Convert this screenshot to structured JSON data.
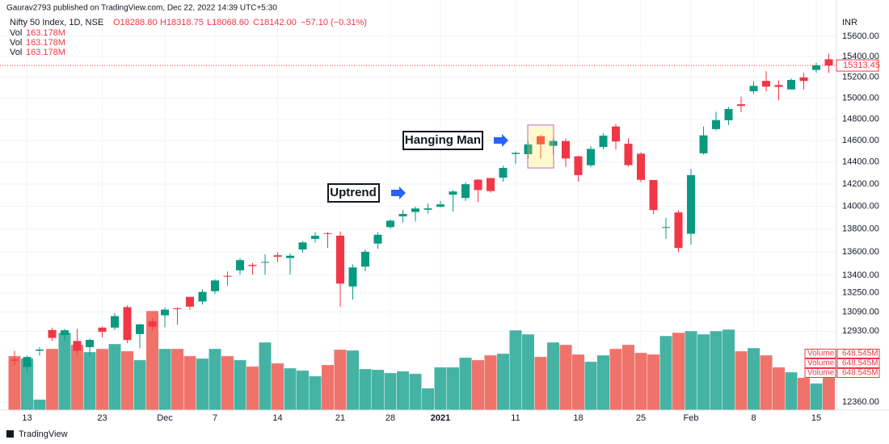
{
  "header": {
    "publisher": "Gaurav2793 published on TradingView.com, Dec 22, 2022 14:39 UTC+5:30",
    "symbol": "Nifty 50 Index, 1D, NSE",
    "open": "O18288.80",
    "high": "H18318.75",
    "low": "L18068.60",
    "close": "C18142.00",
    "change": "−57.10 (−0.31%)",
    "vol_name": "Vol",
    "vol_value": "163.178M"
  },
  "footer": {
    "brand": "TradingView"
  },
  "chart_data": {
    "type": "candlestick",
    "currency": "INR",
    "log_scale": true,
    "grid": true,
    "up_color": "#089981",
    "down_color": "#f23645",
    "volume_up_color": "#45b3a4",
    "volume_down_color": "#f0736b",
    "categories": [
      null,
      "13",
      null,
      null,
      null,
      null,
      null,
      "23",
      null,
      null,
      null,
      null,
      "Dec",
      null,
      null,
      null,
      "7",
      null,
      null,
      null,
      null,
      "14",
      null,
      null,
      null,
      null,
      "21",
      null,
      null,
      null,
      "28",
      null,
      null,
      null,
      "2021",
      null,
      null,
      null,
      null,
      null,
      "11",
      null,
      null,
      null,
      null,
      "18",
      null,
      null,
      null,
      null,
      "25",
      null,
      null,
      null,
      "Feb",
      null,
      null,
      null,
      null,
      "8",
      null,
      null,
      null,
      null,
      "15",
      null
    ],
    "open": [
      12700,
      12640,
      12770,
      12940,
      12900,
      12850,
      12800,
      12960,
      12960,
      13130,
      12907,
      13012,
      13062,
      13121,
      13216,
      13177,
      13264,
      13394,
      13441,
      13488,
      13512,
      13571,
      13547,
      13621,
      13713,
      13763,
      13741,
      13304,
      13473,
      13672,
      13816,
      13911,
      13950,
      13970,
      13996,
      14104,
      14075,
      14240,
      14254,
      14258,
      14474,
      14473,
      14639,
      14550,
      14594,
      14453,
      14371,
      14539,
      14730,
      14569,
      14477,
      14237,
      13810,
      13946,
      13758,
      14481,
      14706,
      14789,
      14940,
      15064,
      15164,
      15124,
      15082,
      15198,
      15270,
      15374
    ],
    "high": [
      12770,
      12730,
      12800,
      12960,
      12950,
      12950,
      12870,
      12970,
      13080,
      13146,
      12991,
      13036,
      13128,
      13128,
      13216,
      13280,
      13366,
      13432,
      13548,
      13504,
      13580,
      13597,
      13587,
      13692,
      13773,
      13772,
      13778,
      13492,
      13619,
      13771,
      13885,
      13968,
      13997,
      14025,
      14049,
      14147,
      14215,
      14244,
      14256,
      14367,
      14498,
      14590,
      14653,
      14617,
      14617,
      14459,
      14546,
      14667,
      14753,
      14619,
      14491,
      14237,
      13898,
      13966,
      14337,
      14731,
      14868,
      14914,
      15014,
      15159,
      15257,
      15169,
      15188,
      15243,
      15340,
      15431
    ],
    "low": [
      12650,
      12600,
      12730,
      12850,
      12850,
      12730,
      12730,
      12880,
      12940,
      12833,
      12790,
      12935,
      12962,
      12983,
      13107,
      13152,
      13241,
      13311,
      13401,
      13403,
      13402,
      13512,
      13403,
      13593,
      13682,
      13634,
      13131,
      13193,
      13433,
      13626,
      13802,
      13858,
      13865,
      13937,
      13991,
      13953,
      14048,
      14039,
      14123,
      14222,
      14383,
      14432,
      14435,
      14471,
      14357,
      14222,
      14351,
      14517,
      14517,
      14358,
      14218,
      13929,
      13713,
      13597,
      13662,
      14469,
      14692,
      14745,
      14864,
      15041,
      15064,
      14978,
      15081,
      15081,
      15243,
      15242
    ],
    "close": [
      12690,
      12720,
      12780,
      12875,
      12938,
      12771,
      12859,
      12926,
      13055,
      12858,
      12987,
      12968,
      13109,
      13113,
      13134,
      13258,
      13355,
      13392,
      13529,
      13478,
      13513,
      13558,
      13567,
      13682,
      13740,
      13760,
      13328,
      13466,
      13601,
      13749,
      13873,
      13932,
      13981,
      13982,
      14018,
      14133,
      14199,
      14146,
      14137,
      14347,
      14485,
      14563,
      14564,
      14595,
      14433,
      14281,
      14521,
      14644,
      14590,
      14372,
      14238,
      13967,
      13817,
      13634,
      14281,
      14647,
      14790,
      14895,
      14924,
      15116,
      15109,
      15106,
      15173,
      15163,
      15315,
      15313.45
    ],
    "volume": [
      820,
      783,
      159,
      930,
      1175,
      991,
      881,
      930,
      1004,
      894,
      759,
      1506,
      930,
      930,
      820,
      783,
      930,
      820,
      759,
      661,
      1028,
      710,
      636,
      600,
      514,
      685,
      918,
      906,
      624,
      612,
      563,
      588,
      551,
      330,
      649,
      649,
      796,
      759,
      832,
      857,
      1212,
      1151,
      808,
      1028,
      991,
      845,
      734,
      832,
      930,
      991,
      869,
      845,
      1126,
      1175,
      1200,
      1151,
      1200,
      1224,
      894,
      942,
      832,
      649,
      575,
      490,
      404,
      648.545
    ],
    "volume_lim": [
      0,
      2000
    ],
    "volume_tag": {
      "name": "Volume",
      "label": "648.545M"
    },
    "price_tag": 15313.45,
    "ylim": [
      12297,
      15802
    ],
    "yticks": [
      {
        "value": 15600,
        "label": "15600.00"
      },
      {
        "value": 15400,
        "label": "15400.00"
      },
      {
        "value": 15200,
        "label": "15200.00"
      },
      {
        "value": 15000,
        "label": "15000.00"
      },
      {
        "value": 14800,
        "label": "14800.00"
      },
      {
        "value": 14600,
        "label": "14600.00"
      },
      {
        "value": 14400,
        "label": "14400.00"
      },
      {
        "value": 14200,
        "label": "14200.00"
      },
      {
        "value": 14000,
        "label": "14000.00"
      },
      {
        "value": 13800,
        "label": "13800.00"
      },
      {
        "value": 13600,
        "label": "13600.00"
      },
      {
        "value": 13400,
        "label": "13400.00"
      },
      {
        "value": 13250,
        "label": "13250.00"
      },
      {
        "value": 13090,
        "label": "13090.00"
      },
      {
        "value": 12930,
        "label": "12930.00"
      },
      {
        "value": 12360,
        "label": "12360.00"
      }
    ],
    "annotations": [
      {
        "text": "Hanging Man",
        "index": 42
      },
      {
        "text": "Uptrend"
      }
    ]
  }
}
